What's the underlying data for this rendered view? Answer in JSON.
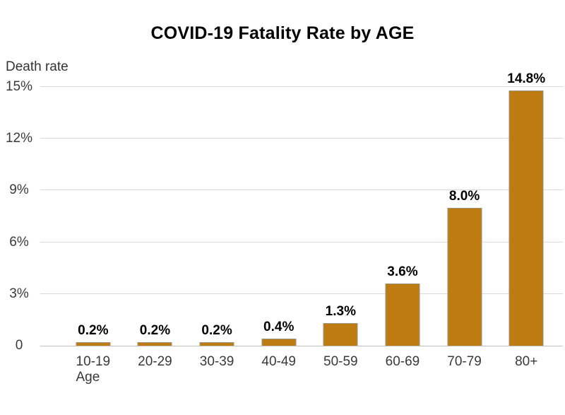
{
  "title": "COVID-19 Fatality Rate by AGE",
  "axis": {
    "y_label": "Death rate",
    "x_label": "Age"
  },
  "colors": {
    "bar_fill": "#bd7b12",
    "bar_border": "#9b9286",
    "gridline": "#d9d9d9",
    "zero_line": "#bfbfbf",
    "text_primary": "#000000",
    "text_secondary": "#3a3a3a"
  },
  "chart_data": {
    "type": "bar",
    "title": "COVID-19 Fatality Rate by AGE",
    "xlabel": "Age",
    "ylabel": "Death rate",
    "categories": [
      "10-19",
      "20-29",
      "30-39",
      "40-49",
      "50-59",
      "60-69",
      "70-79",
      "80+"
    ],
    "values": [
      0.2,
      0.2,
      0.2,
      0.4,
      1.3,
      3.6,
      8.0,
      14.8
    ],
    "value_labels": [
      "0.2%",
      "0.2%",
      "0.2%",
      "0.4%",
      "1.3%",
      "3.6%",
      "8.0%",
      "14.8%"
    ],
    "ylim": [
      0,
      15
    ],
    "y_ticks": [
      {
        "value": 15,
        "label": "15%"
      },
      {
        "value": 12,
        "label": "12%"
      },
      {
        "value": 9,
        "label": "9%"
      },
      {
        "value": 6,
        "label": "6%"
      },
      {
        "value": 3,
        "label": "3%"
      },
      {
        "value": 0,
        "label": "0"
      }
    ],
    "grid": true,
    "legend": false,
    "bar_color": "#bd7b12"
  }
}
